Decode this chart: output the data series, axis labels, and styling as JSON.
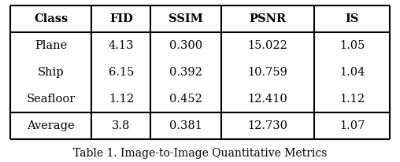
{
  "headers": [
    "Class",
    "FID",
    "SSIM",
    "PSNR",
    "IS"
  ],
  "rows": [
    [
      "Plane",
      "4.13",
      "0.300",
      "15.022",
      "1.05"
    ],
    [
      "Ship",
      "6.15",
      "0.392",
      "10.759",
      "1.04"
    ],
    [
      "Seafloor",
      "1.12",
      "0.452",
      "12.410",
      "1.12"
    ],
    [
      "Average",
      "3.8",
      "0.381",
      "12.730",
      "1.07"
    ]
  ],
  "caption": "Table 1. Image-to-Image Quantitative Metrics",
  "header_fontsize": 10.5,
  "cell_fontsize": 10.5,
  "caption_fontsize": 10.0,
  "bg_color": "#ffffff",
  "line_color": "#000000",
  "figsize": [
    5.08,
    2.06
  ],
  "dpi": 100
}
